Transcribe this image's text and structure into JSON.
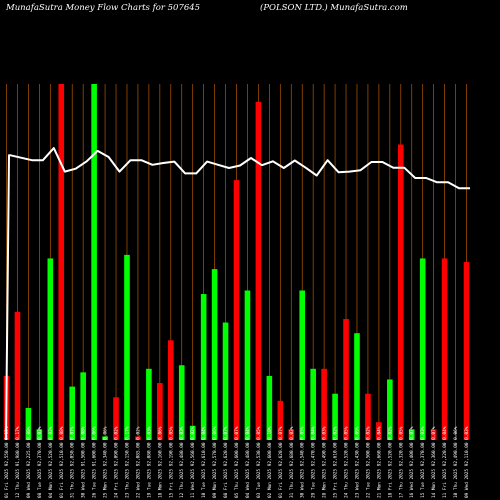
{
  "header": {
    "left": "MunafaSutra  Money Flow  Charts for 507645",
    "right": "(POLSON  LTD.) MunafaSutra.com"
  },
  "chart_data": {
    "type": "bar",
    "title": "MunafaSutra  Money Flow  Charts for 507645 (POLSON  LTD.) MunafaSutra.com",
    "categories": [
      "01 Fri 2025 92,550.00 0.13%",
      "12 Thu 2025 91,980.00 0.17%",
      "09 Wed 2025 92,225.00 0.08%",
      "08 Tue 2025 92,370.00 0.03%",
      "04 Mon 2025 92,520.00 0.02%",
      "01 Fri 2025 92,510.00 0.08%",
      "31 Thu 2025 92,050.00 0.07%",
      "30 Wed 2025 91,500.00 0.08%",
      "26 Tue 2025 91,600.00 0.06%",
      "25 Mon 2025 92,340.00 0.06%",
      "24 Fri 2025 92,090.00 0.02%",
      "23 Thu 2025 92,150.00 0.17%",
      "22 Wed 2025 92,085.00 0.02%",
      "19 Tue 2025 92,080.00 0.03%",
      "18 Mon 2025 92,160.00 0.06%",
      "15 Fri 2025 92,190.00 0.05%",
      "12 Thu 2025 92,480.00 0.03%",
      "11 Wed 2025 92,560.00 0.02%",
      "10 Tue 2025 92,610.00 0.04%",
      "09 Mon 2025 92,570.00 0.06%",
      "08 Fri 2025 92,620.00 0.07%",
      "05 Thu 2025 92,600.00 0.07%",
      "04 Wed 2025 92,480.00 0.04%",
      "03 Tue 2025 92,530.00 0.05%",
      "02 Mon 2025 92,600.00 0.10%",
      "01 Fri 2025 92,620.00 0.07%",
      "31 Thu 2025 92,680.00 0.03%",
      "30 Wed 2025 92,540.00 0.05%",
      "29 Tue 2025 92,470.00 0.04%",
      "28 Mon 2025 92,490.00 0.03%",
      "25 Fri 2025 92,610.00 0.02%",
      "24 Thu 2025 92,520.00 0.05%",
      "23 Wed 2025 92,430.00 0.09%",
      "22 Tue 2025 92,500.00 0.02%",
      "21 Mon 2025 92,660.00 0.04%",
      "18 Fri 2025 92,520.00 0.02%",
      "17 Thu 2025 92,320.00 0.05%",
      "16 Wed 2025 92,400.00 0.07%",
      "15 Tue 2025 92,370.00 0.03%",
      "14 Mon 2025 92,360.00 0.07%",
      "11 Fri 2025 92,220.00 0.04%",
      "10 Thu 2025 92,490.00 0.06%",
      "09 Wed 2025 92,110.00 0.03%"
    ],
    "series": [
      {
        "bar_direction": [
          "down",
          "down",
          "up",
          "up",
          "up",
          "down",
          "up",
          "up",
          "up",
          "up",
          "down",
          "up",
          "down",
          "up",
          "down",
          "down",
          "up",
          "up",
          "up",
          "up",
          "up",
          "down",
          "up",
          "down",
          "up",
          "down",
          "down",
          "up",
          "up",
          "down",
          "up",
          "down",
          "up",
          "down",
          "down",
          "up",
          "down",
          "up",
          "up",
          "down",
          "down",
          "up",
          "down"
        ],
        "values": [
          18,
          36,
          9,
          3,
          51,
          100,
          15,
          19,
          100,
          1,
          12,
          52,
          1,
          20,
          16,
          28,
          21,
          4,
          41,
          48,
          33,
          73,
          42,
          95,
          18,
          11,
          3,
          42,
          20,
          20,
          13,
          34,
          30,
          13,
          5,
          17,
          83,
          3,
          51,
          3,
          51,
          0,
          50
        ]
      },
      {
        "name": "",
        "values": [
          80,
          79.3,
          78.6,
          78.6,
          82,
          75.4,
          76.2,
          78.3,
          81.2,
          79.5,
          75.4,
          78.6,
          78.6,
          77.3,
          77.8,
          78.2,
          74.9,
          74.9,
          78.2,
          77.3,
          76.4,
          77.1,
          79.2,
          77.2,
          78.3,
          76.4,
          78.5,
          76.5,
          74.3,
          78.6,
          75.2,
          75.4,
          75.8,
          78.1,
          78.1,
          76.5,
          76.5,
          73.6,
          73.6,
          72.4,
          72.4,
          70.7,
          70.7
        ]
      }
    ],
    "colors": {
      "up": "#00ff00",
      "down": "#ff0000",
      "grid": "#b35900",
      "line": "#ffffff",
      "background": "#000000"
    },
    "ylim": [
      0,
      100
    ],
    "grid": true
  }
}
